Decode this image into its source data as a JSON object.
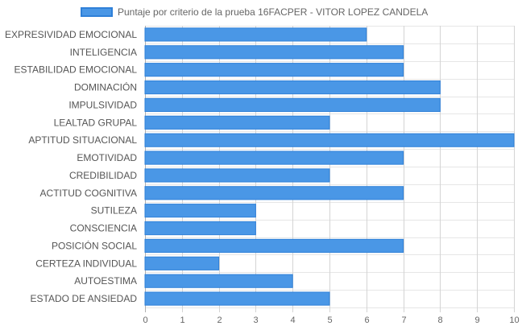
{
  "chart_data": {
    "type": "bar",
    "orientation": "horizontal",
    "legend_position": "top",
    "grid": true,
    "series": [
      {
        "name": "Puntaje por criterio de la prueba 16FACPER - VITOR LOPEZ CANDELA",
        "color": "#4a97e6",
        "border_color": "#2f80d8",
        "values": [
          6,
          7,
          7,
          8,
          8,
          5,
          10,
          7,
          5,
          7,
          3,
          3,
          7,
          2,
          4,
          5
        ]
      }
    ],
    "categories": [
      "EXPRESIVIDAD EMOCIONAL",
      "INTELIGENCIA",
      "ESTABILIDAD EMOCIONAL",
      "DOMINACIÓN",
      "IMPULSIVIDAD",
      "LEALTAD GRUPAL",
      "APTITUD SITUACIONAL",
      "EMOTIVIDAD",
      "CREDIBILIDAD",
      "ACTITUD COGNITIVA",
      "SUTILEZA",
      "CONSCIENCIA",
      "POSICIÓN SOCIAL",
      "CERTEZA INDIVIDUAL",
      "AUTOESTIMA",
      "ESTADO DE ANSIEDAD"
    ],
    "xlim": [
      0,
      10
    ],
    "xticks": [
      "0",
      "1",
      "2",
      "3",
      "4",
      "5",
      "6",
      "7",
      "8",
      "9",
      "10"
    ]
  }
}
